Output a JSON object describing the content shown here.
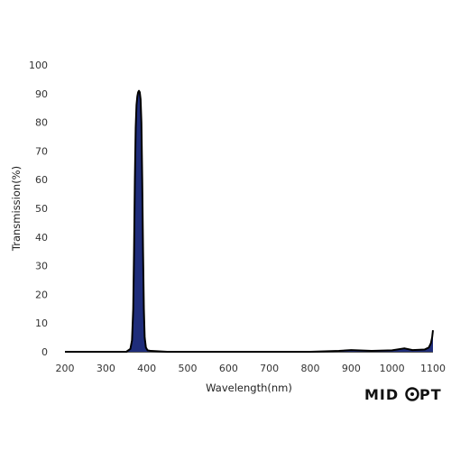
{
  "chart_data": {
    "type": "line",
    "title": "",
    "xlabel": "Wavelength(nm)",
    "ylabel": "Transmission(%)",
    "xlim": [
      200,
      1100
    ],
    "ylim": [
      0,
      100
    ],
    "xticks": [
      200,
      300,
      400,
      500,
      600,
      700,
      800,
      900,
      1000,
      1100
    ],
    "yticks": [
      0,
      10,
      20,
      30,
      40,
      50,
      60,
      70,
      80,
      90,
      100
    ],
    "grid": false,
    "fill_color": "#1f2d7a",
    "line_color": "#000000",
    "series": [
      {
        "x": [
          200,
          350,
          360,
          364,
          367,
          369,
          371,
          373,
          375,
          377,
          379,
          381,
          383,
          385,
          387,
          389,
          391,
          393,
          395,
          398,
          402,
          410,
          450,
          600,
          800,
          870,
          900,
          950,
          1000,
          1030,
          1050,
          1080,
          1090,
          1095,
          1098,
          1100
        ],
        "y": [
          0,
          0,
          1,
          4,
          15,
          35,
          60,
          78,
          86,
          89,
          90.5,
          91,
          90.5,
          88,
          80,
          60,
          35,
          15,
          5,
          1.5,
          0.5,
          0.3,
          0,
          0,
          0,
          0.3,
          0.6,
          0.3,
          0.5,
          1.2,
          0.6,
          0.8,
          1.5,
          3,
          5,
          7.5
        ]
      }
    ]
  },
  "logo": {
    "text": "MIDOPT"
  }
}
